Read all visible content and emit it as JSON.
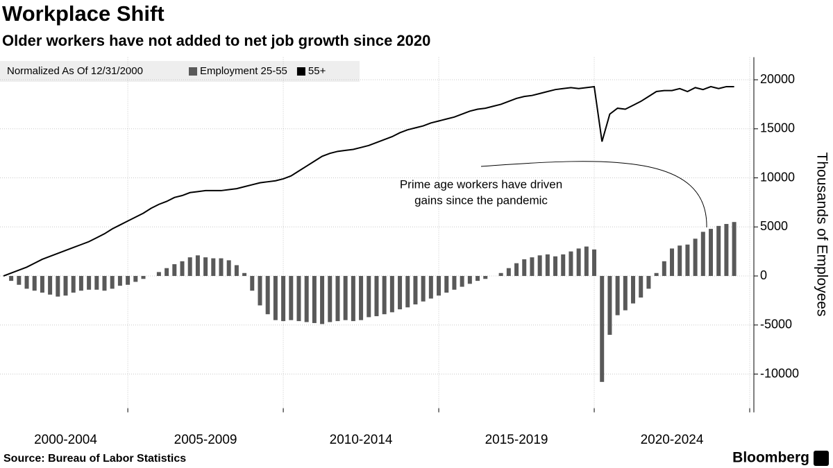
{
  "chart_data": {
    "type": "combo",
    "title": "Workplace Shift",
    "subtitle": "Older workers have not added to net job growth since 2020",
    "legend_title": "Normalized As Of 12/31/2000",
    "y_label": "Thousands of Employees",
    "annotation": [
      "Prime age workers have driven",
      "gains since the pandemic"
    ],
    "source": "Source: Bureau of Labor Statistics",
    "brand": "Bloomberg",
    "x": [
      2001.0,
      2001.25,
      2001.5,
      2001.75,
      2002.0,
      2002.25,
      2002.5,
      2002.75,
      2003.0,
      2003.25,
      2003.5,
      2003.75,
      2004.0,
      2004.25,
      2004.5,
      2004.75,
      2005.0,
      2005.25,
      2005.5,
      2005.75,
      2006.0,
      2006.25,
      2006.5,
      2006.75,
      2007.0,
      2007.25,
      2007.5,
      2007.75,
      2008.0,
      2008.25,
      2008.5,
      2008.75,
      2009.0,
      2009.25,
      2009.5,
      2009.75,
      2010.0,
      2010.25,
      2010.5,
      2010.75,
      2011.0,
      2011.25,
      2011.5,
      2011.75,
      2012.0,
      2012.25,
      2012.5,
      2012.75,
      2013.0,
      2013.25,
      2013.5,
      2013.75,
      2014.0,
      2014.25,
      2014.5,
      2014.75,
      2015.0,
      2015.25,
      2015.5,
      2015.75,
      2016.0,
      2016.25,
      2016.5,
      2016.75,
      2017.0,
      2017.25,
      2017.5,
      2017.75,
      2018.0,
      2018.25,
      2018.5,
      2018.75,
      2019.0,
      2019.25,
      2019.5,
      2019.75,
      2020.0,
      2020.25,
      2020.5,
      2020.75,
      2021.0,
      2021.25,
      2021.5,
      2021.75,
      2022.0,
      2022.25,
      2022.5,
      2022.75,
      2023.0,
      2023.25,
      2023.5,
      2023.75,
      2024.0,
      2024.25,
      2024.5
    ],
    "series": [
      {
        "name": "Employment 25-55",
        "type": "bar",
        "color": "#595959",
        "values": [
          0,
          -500,
          -900,
          -1300,
          -1500,
          -1700,
          -1900,
          -2100,
          -2000,
          -1700,
          -1500,
          -1400,
          -1400,
          -1500,
          -1300,
          -1000,
          -900,
          -600,
          -300,
          0,
          400,
          800,
          1200,
          1500,
          1900,
          2100,
          1900,
          1800,
          1800,
          1600,
          1100,
          300,
          -1500,
          -3000,
          -3900,
          -4500,
          -4600,
          -4500,
          -4600,
          -4700,
          -4800,
          -4900,
          -4700,
          -4600,
          -4500,
          -4600,
          -4500,
          -4200,
          -4100,
          -3900,
          -3700,
          -3400,
          -3200,
          -2900,
          -2600,
          -2300,
          -2000,
          -1700,
          -1400,
          -1100,
          -800,
          -500,
          -300,
          0,
          300,
          800,
          1300,
          1700,
          1900,
          2100,
          2200,
          2000,
          2200,
          2500,
          2800,
          3000,
          2700,
          -10800,
          -6000,
          -4000,
          -3500,
          -2800,
          -2200,
          -1300,
          300,
          1500,
          2800,
          3100,
          3200,
          3800,
          4500,
          4800,
          5100,
          5300,
          5500
        ]
      },
      {
        "name": "55+",
        "type": "line",
        "color": "#000000",
        "values": [
          0,
          300,
          600,
          900,
          1300,
          1700,
          2000,
          2300,
          2600,
          2900,
          3200,
          3500,
          3900,
          4300,
          4800,
          5200,
          5600,
          6000,
          6400,
          6900,
          7300,
          7600,
          8000,
          8200,
          8500,
          8600,
          8700,
          8700,
          8700,
          8800,
          8900,
          9100,
          9300,
          9500,
          9600,
          9700,
          9900,
          10200,
          10700,
          11200,
          11700,
          12200,
          12500,
          12700,
          12800,
          12900,
          13100,
          13300,
          13600,
          13900,
          14200,
          14600,
          14900,
          15100,
          15300,
          15600,
          15800,
          16000,
          16200,
          16500,
          16800,
          17000,
          17100,
          17300,
          17500,
          17800,
          18100,
          18300,
          18400,
          18600,
          18800,
          19000,
          19100,
          19200,
          19100,
          19200,
          19300,
          13700,
          16500,
          17100,
          17000,
          17400,
          17800,
          18300,
          18800,
          18900,
          18900,
          19100,
          18800,
          19200,
          19000,
          19300,
          19100,
          19300,
          19300
        ]
      }
    ],
    "xlim": [
      2000.89,
      2025.0
    ],
    "xticks": [
      2005,
      2010,
      2015,
      2020,
      2025
    ],
    "xticklabels": [
      {
        "value": 2003,
        "label": "2000-2004"
      },
      {
        "value": 2007.5,
        "label": "2005-2009"
      },
      {
        "value": 2012.5,
        "label": "2010-2014"
      },
      {
        "value": 2017.5,
        "label": "2015-2019"
      },
      {
        "value": 2022.5,
        "label": "2020-2024"
      }
    ],
    "ylim": [
      -13900,
      22300
    ],
    "yticks": [
      -10000,
      -5000,
      0,
      5000,
      10000,
      15000,
      20000
    ],
    "grid": true
  }
}
